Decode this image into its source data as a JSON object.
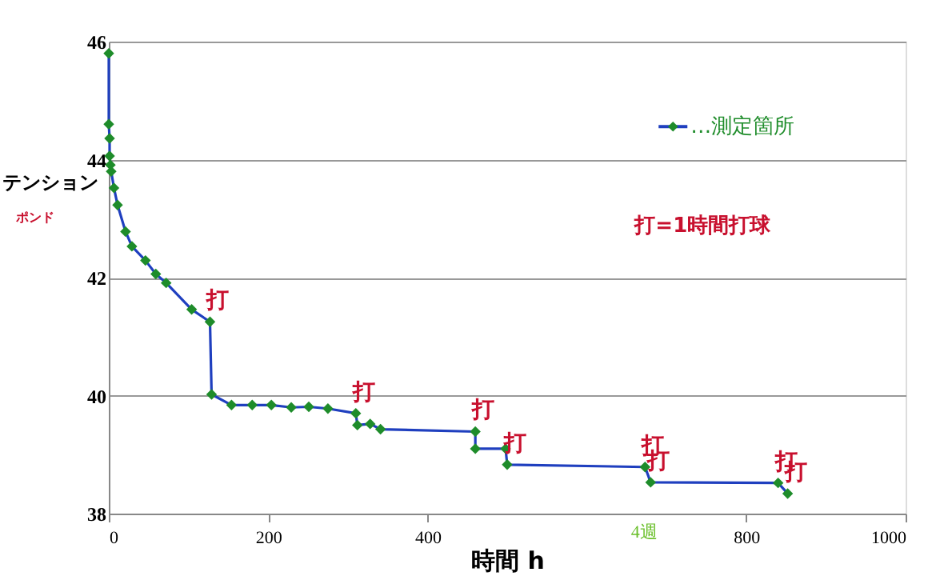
{
  "chart_data": {
    "type": "line",
    "xlabel": "時間 h",
    "ylabel": "テンション",
    "x": [
      0,
      0,
      1,
      1,
      2,
      3,
      6.5,
      11,
      21,
      29,
      46,
      59,
      72,
      104,
      127,
      129,
      154,
      180,
      204,
      229,
      251,
      275,
      310,
      312,
      328,
      341,
      460,
      460,
      498,
      500,
      673,
      680,
      840,
      852
    ],
    "series": [
      {
        "name": "…測定箇所",
        "color": "#1e8c2a",
        "values": [
          45.8,
          44.6,
          44.36,
          44.06,
          43.91,
          43.8,
          43.52,
          43.23,
          42.78,
          42.53,
          42.29,
          42.06,
          41.91,
          41.46,
          41.25,
          40.02,
          39.84,
          39.84,
          39.84,
          39.8,
          39.81,
          39.78,
          39.7,
          39.5,
          39.52,
          39.43,
          39.39,
          39.1,
          39.1,
          38.83,
          38.79,
          38.53,
          38.52,
          38.34
        ]
      }
    ],
    "xlim": [
      0,
      1000
    ],
    "xticks": [
      0,
      200,
      400,
      800,
      1000
    ],
    "ylim": [
      38,
      46
    ],
    "yticks": [
      38,
      40,
      42,
      44,
      46
    ],
    "grid": "y",
    "legend": "top right",
    "marker": "diamond",
    "line_style": "solid",
    "annotations": [
      "ポンド",
      "打=1時間打球",
      "4週",
      {
        "text": "打",
        "x": 127,
        "y": 41.25
      },
      {
        "text": "打",
        "x": 310,
        "y": 39.7
      },
      {
        "text": "打",
        "x": 460,
        "y": 39.39
      },
      {
        "text": "打",
        "x": 500,
        "y": 38.83
      },
      {
        "text": "打",
        "x": 673,
        "y": 38.79
      },
      {
        "text": "打",
        "x": 680,
        "y": 38.53
      },
      {
        "text": "打",
        "x": 840,
        "y": 38.52
      },
      {
        "text": "打",
        "x": 852,
        "y": 38.34
      }
    ]
  }
}
